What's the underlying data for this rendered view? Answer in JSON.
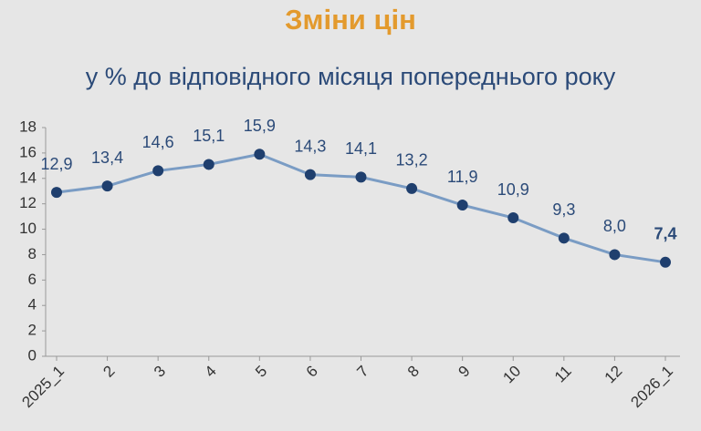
{
  "chart_data": {
    "type": "line",
    "title": "Зміни цін",
    "subtitle": "у % до відповідного місяця попереднього року",
    "categories": [
      "2025_1",
      "2",
      "3",
      "4",
      "5",
      "6",
      "7",
      "8",
      "9",
      "10",
      "11",
      "12",
      "2026_1"
    ],
    "series": [
      {
        "color": "#7a9cc4",
        "values": [
          12.9,
          13.4,
          14.6,
          15.1,
          15.9,
          14.3,
          14.1,
          13.2,
          11.9,
          10.9,
          9.3,
          8.0,
          7.4
        ],
        "value_labels": [
          "12,9",
          "13,4",
          "14,6",
          "15,1",
          "15,9",
          "14,3",
          "14,1",
          "13,2",
          "11,9",
          "10,9",
          "9,3",
          "8,0",
          "7,4"
        ]
      }
    ],
    "ylim": [
      0,
      18
    ],
    "yticks": [
      0,
      2,
      4,
      6,
      8,
      10,
      12,
      14,
      16,
      18
    ]
  }
}
